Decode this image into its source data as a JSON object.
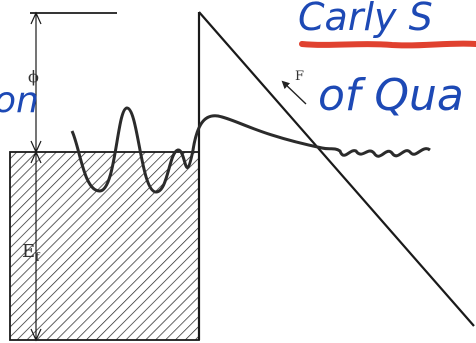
{
  "labels": {
    "phi": "ϕ",
    "ef_main": "E",
    "ef_sub": "f",
    "field": "F"
  },
  "handwriting": {
    "title_line1": "Carly S",
    "title_line2": "of Qua",
    "left_fragment": "on"
  },
  "colors": {
    "ink": "#1a1a1a",
    "hand_blue": "#1d49b5",
    "underline_red": "#e0412f",
    "hatch": "#222222"
  }
}
